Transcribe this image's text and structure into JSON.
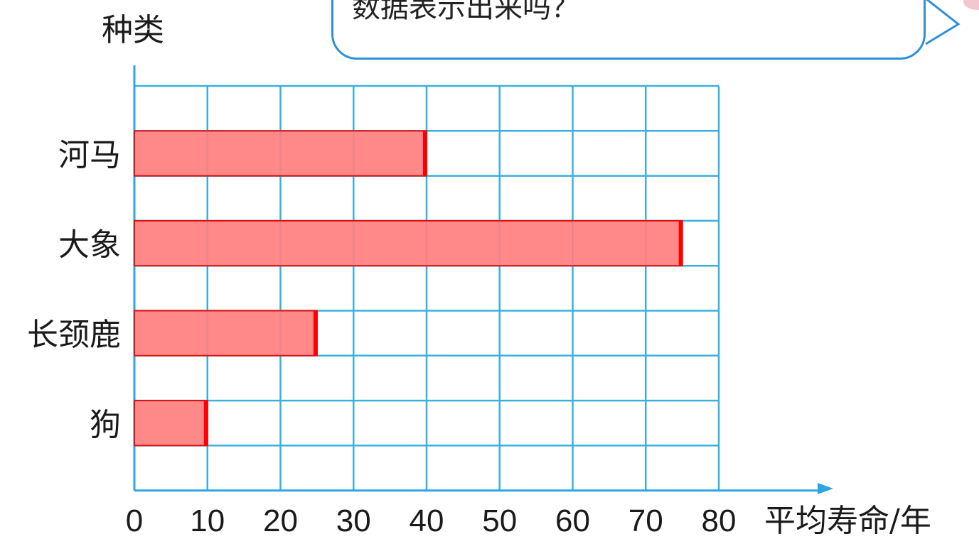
{
  "speech_bubble": {
    "text": "数据表示出来吗？"
  },
  "colors": {
    "grid": "#3ab0de",
    "axis": "#2aa7e0",
    "bar_fill": "#ff7f7f",
    "bar_edge": "#ff0000",
    "bubble_border": "#2f8fd8"
  },
  "chart_data": {
    "type": "bar",
    "orientation": "horizontal",
    "title": "",
    "xlabel": "平均寿命/年",
    "ylabel": "种类",
    "categories": [
      "河马",
      "大象",
      "长颈鹿",
      "狗"
    ],
    "values": [
      40,
      75,
      25,
      10
    ],
    "xlim": [
      0,
      80
    ],
    "x_ticks": [
      "0",
      "10",
      "20",
      "30",
      "40",
      "50",
      "60",
      "70",
      "80"
    ],
    "grid": true
  }
}
